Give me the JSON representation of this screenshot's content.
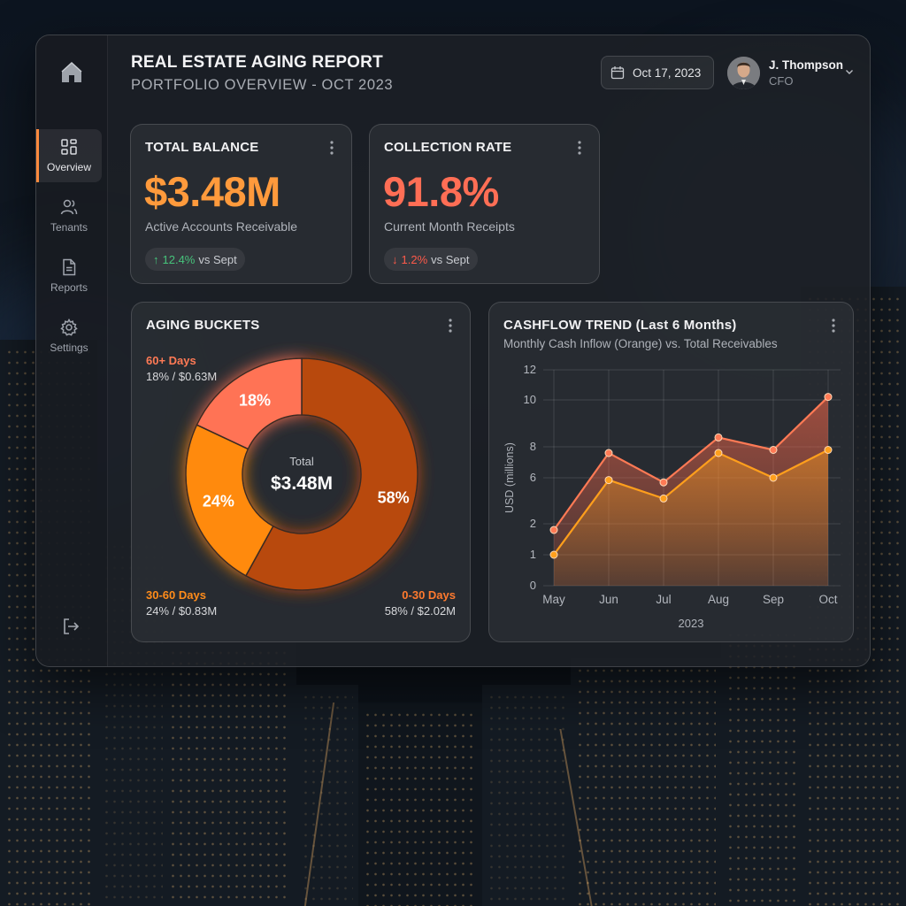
{
  "header": {
    "title": "REAL ESTATE AGING REPORT",
    "subtitle": "PORTFOLIO OVERVIEW - OCT 2023",
    "date": "Oct 17, 2023",
    "user_name": "J. Thompson",
    "user_role": "CFO"
  },
  "sidebar": {
    "items": [
      {
        "label": "Overview",
        "icon": "grid-icon",
        "active": true
      },
      {
        "label": "Tenants",
        "icon": "users-icon",
        "active": false
      },
      {
        "label": "Reports",
        "icon": "document-icon",
        "active": false
      },
      {
        "label": "Settings",
        "icon": "gear-icon",
        "active": false
      }
    ],
    "logo_icon": "home-icon",
    "logout_icon": "logout-icon"
  },
  "kpis": {
    "balance": {
      "title": "TOTAL BALANCE",
      "value": "$3.48M",
      "sub": "Active Accounts Receivable",
      "change_arrow": "↑",
      "change_value": "12.4%",
      "change_text": "vs Sept",
      "color": "#ff9a3c",
      "change_color": "#46c37b"
    },
    "collection": {
      "title": "COLLECTION RATE",
      "value": "91.8%",
      "sub": "Current Month Receipts",
      "change_arrow": "↓",
      "change_value": "1.2%",
      "change_text": "vs Sept",
      "color": "#ff6e55",
      "change_color": "#ff5a4a"
    }
  },
  "aging": {
    "title": "AGING BUCKETS",
    "center_label": "Total",
    "center_value": "$3.48M",
    "legend": [
      {
        "label": "60+ Days",
        "value": "18% / $0.63M",
        "color": "#ff7a55"
      },
      {
        "label": "30-60 Days",
        "value": "24% / $0.83M",
        "color": "#ff8c1a"
      },
      {
        "label": "0-30 Days",
        "value": "58% / $2.02M",
        "color": "#ff7a2e"
      }
    ]
  },
  "cashflow": {
    "title": "CASHFLOW TREND (Last 6 Months)",
    "subtitle": "Monthly Cash Inflow (Orange) vs. Total Receivables"
  },
  "chart_data": [
    {
      "type": "pie",
      "labels": [
        "0-30 Days",
        "30-60 Days",
        "60+ Days"
      ],
      "values": [
        58,
        24,
        18
      ],
      "slice_labels": [
        "58%",
        "24%",
        "18%"
      ],
      "colors": [
        "#b84a0c",
        "#ff8a10",
        "#ff7355"
      ],
      "donut": true
    },
    {
      "type": "area",
      "categories": [
        "May",
        "Jun",
        "Jul",
        "Aug",
        "Sep",
        "Oct"
      ],
      "xlabel": "2023",
      "ylabel": "USD (millions)",
      "yticks": [
        "0",
        "1",
        "2",
        "6",
        "8",
        "10",
        "12"
      ],
      "series": [
        {
          "name": "Total Receivables",
          "values": [
            1.8,
            7.6,
            5.6,
            8.4,
            7.8,
            10.2
          ],
          "color": "#ff7a55"
        },
        {
          "name": "Monthly Cash Inflow",
          "values": [
            1.0,
            5.8,
            4.2,
            7.6,
            6.0,
            7.8
          ],
          "color": "#ff9f1c"
        }
      ],
      "grid": true
    }
  ]
}
